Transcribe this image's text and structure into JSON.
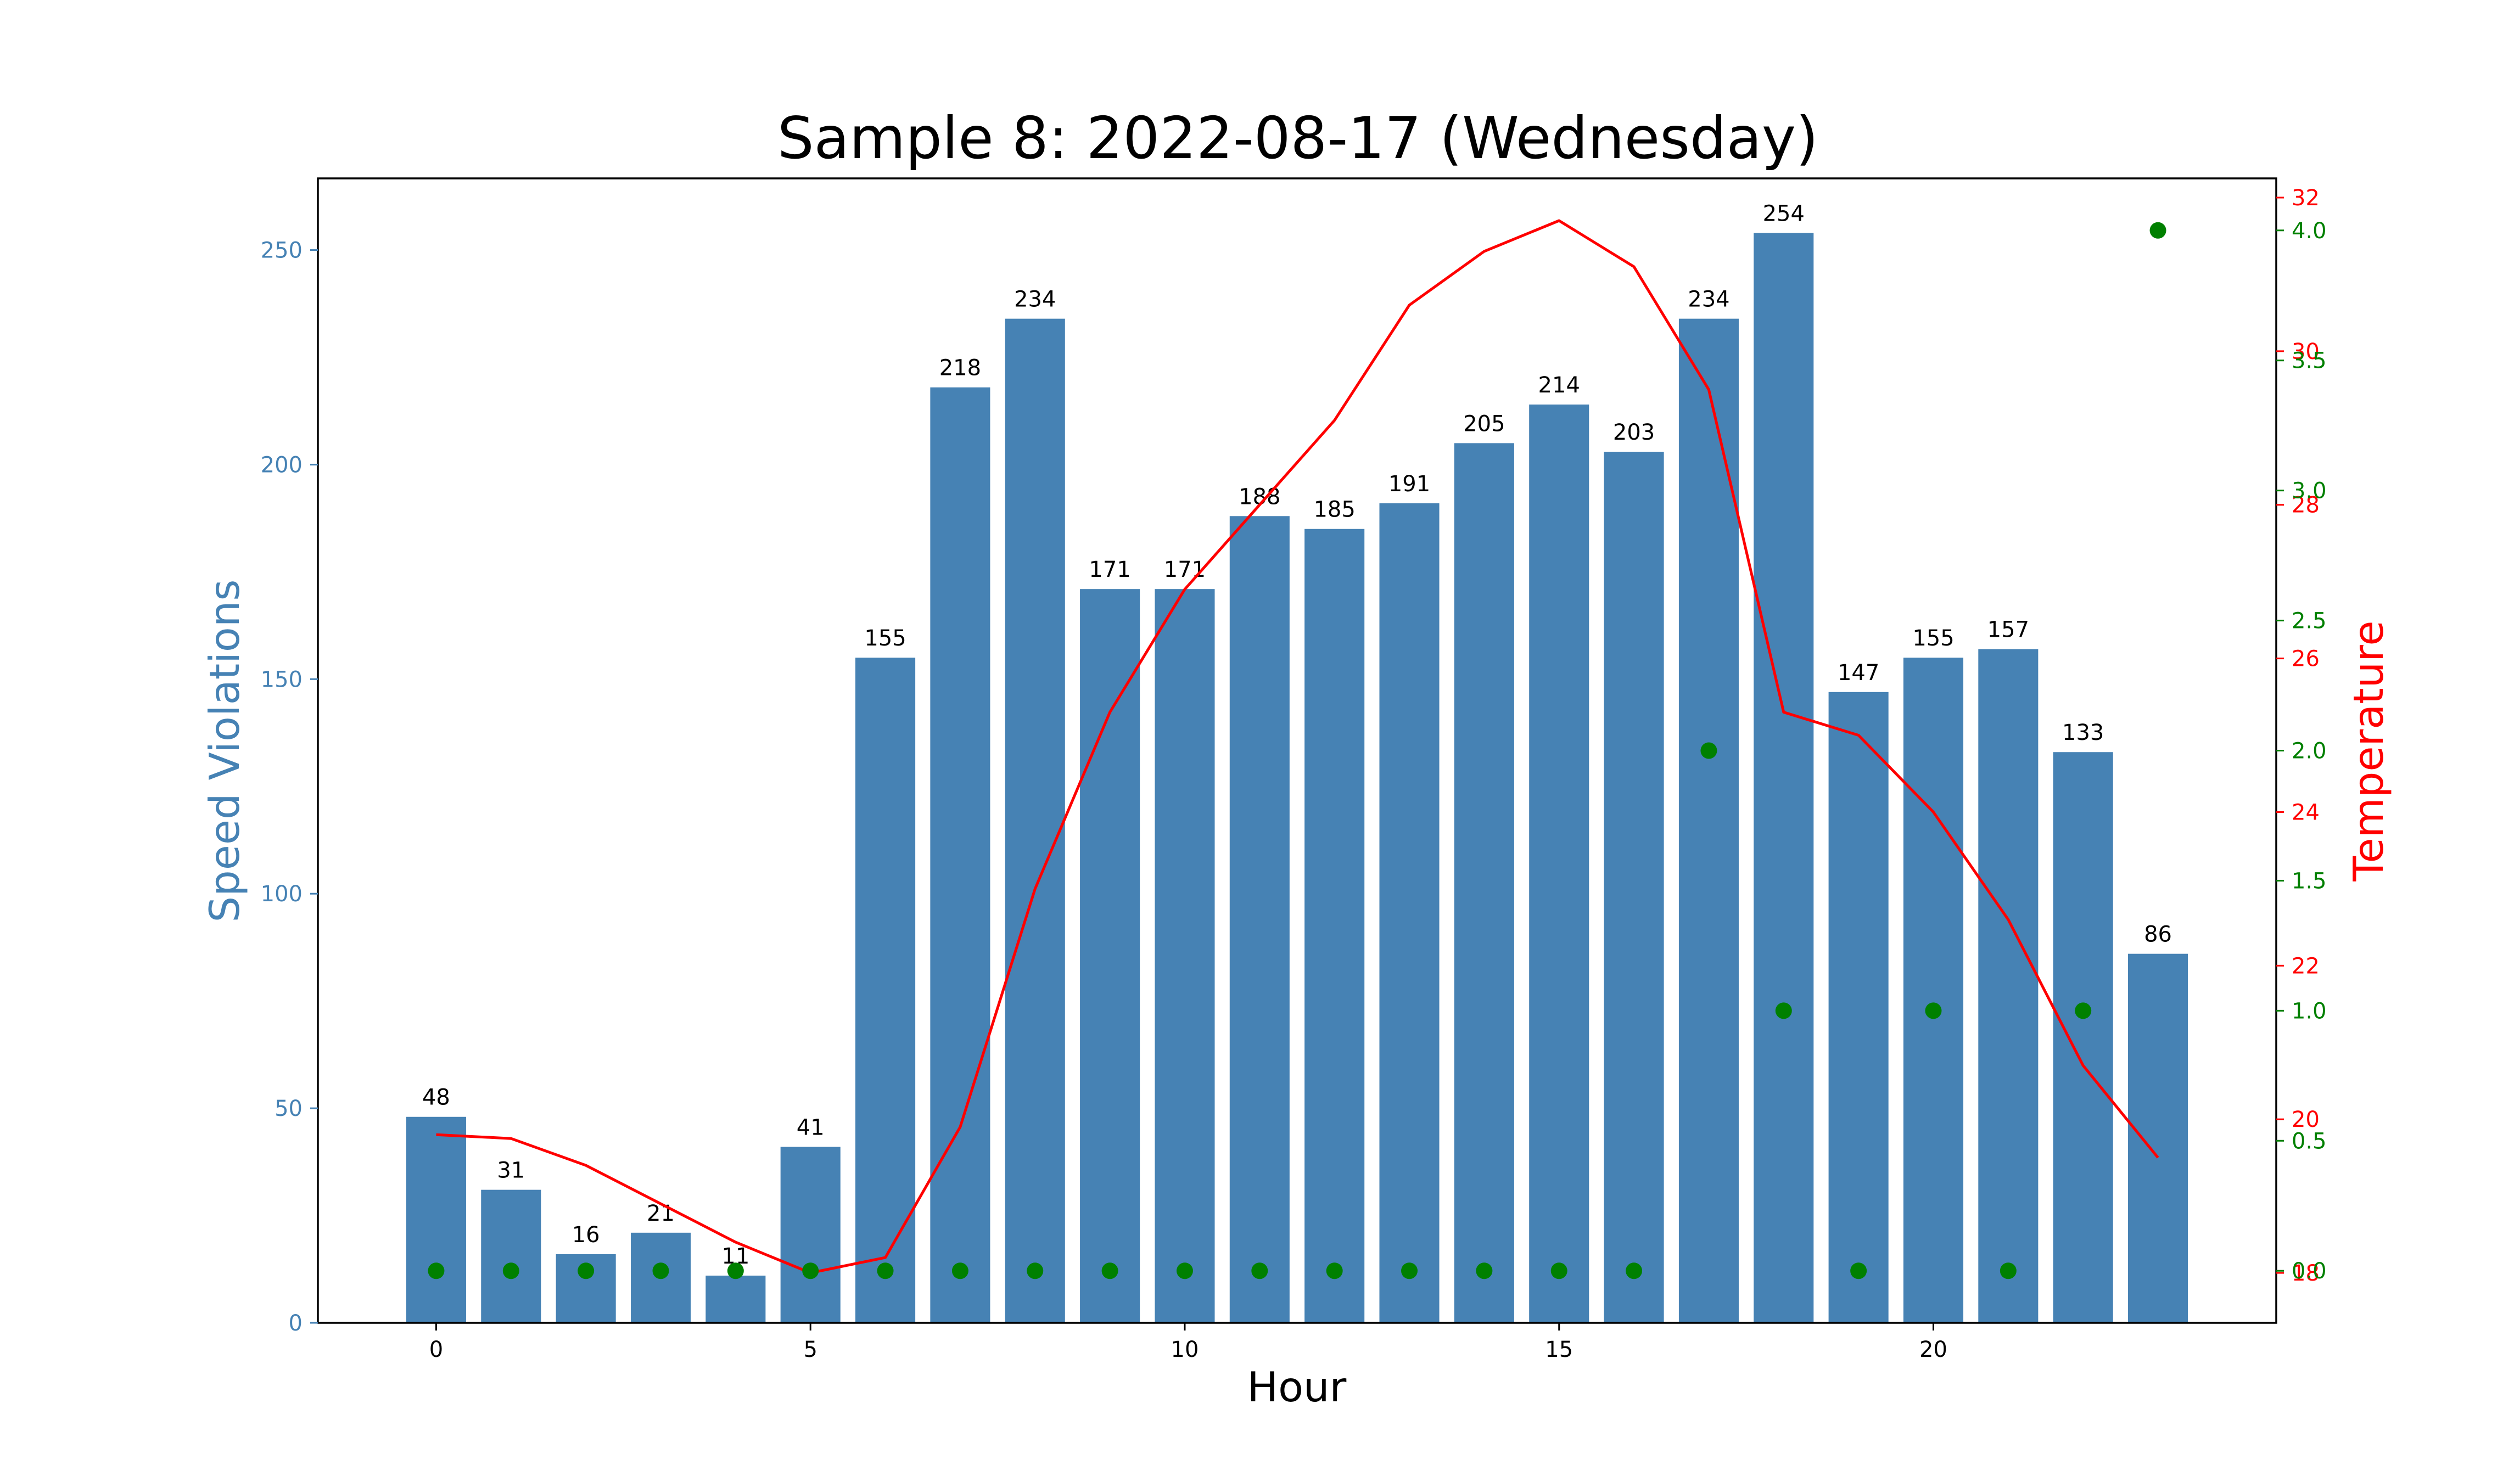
{
  "chart_data": {
    "type": "bar",
    "title": "Sample 8: 2022-08-17 (Wednesday)",
    "xlabel": "Hour",
    "ylabel": "Speed Violations",
    "y2label": "Temperature",
    "x": [
      0,
      1,
      2,
      3,
      4,
      5,
      6,
      7,
      8,
      9,
      10,
      11,
      12,
      13,
      14,
      15,
      16,
      17,
      18,
      19,
      20,
      21,
      22,
      23
    ],
    "xlim": [
      -1.58,
      24.58
    ],
    "xticks": [
      0,
      5,
      10,
      15,
      20
    ],
    "ylim": [
      0,
      266.7
    ],
    "yticks": [
      0,
      50,
      100,
      150,
      200,
      250
    ],
    "y2lim": [
      17.35,
      32.25
    ],
    "y2ticks": [
      18,
      20,
      22,
      24,
      26,
      28,
      30,
      32
    ],
    "y3lim": [
      -0.2,
      4.2
    ],
    "y3ticks": [
      0.0,
      0.5,
      1.0,
      1.5,
      2.0,
      2.5,
      3.0,
      3.5,
      4.0
    ],
    "grid": false,
    "series": [
      {
        "kind": "bar",
        "axis": "left",
        "color": "#4682b4",
        "values": [
          48,
          31,
          16,
          21,
          11,
          41,
          155,
          218,
          234,
          171,
          171,
          188,
          185,
          191,
          205,
          214,
          203,
          234,
          254,
          147,
          155,
          157,
          133,
          86
        ]
      },
      {
        "kind": "line",
        "axis": "right",
        "color": "#ff0000",
        "values": [
          19.8,
          19.75,
          19.4,
          18.9,
          18.4,
          18.0,
          18.2,
          19.9,
          23.0,
          25.3,
          26.9,
          28.0,
          29.1,
          30.6,
          31.3,
          31.7,
          31.1,
          29.5,
          25.3,
          25.0,
          24.0,
          22.6,
          20.7,
          19.5
        ]
      },
      {
        "kind": "scatter",
        "axis": "right-outer",
        "color": "#008000",
        "values": [
          0,
          0,
          0,
          0,
          0,
          0,
          0,
          0,
          0,
          0,
          0,
          0,
          0,
          0,
          0,
          0,
          0,
          2,
          1,
          0,
          1,
          0,
          1,
          4
        ]
      }
    ],
    "colors": {
      "left_axis": "#4682b4",
      "right_axis": "#ff0000",
      "outer_axis": "#008000"
    }
  }
}
